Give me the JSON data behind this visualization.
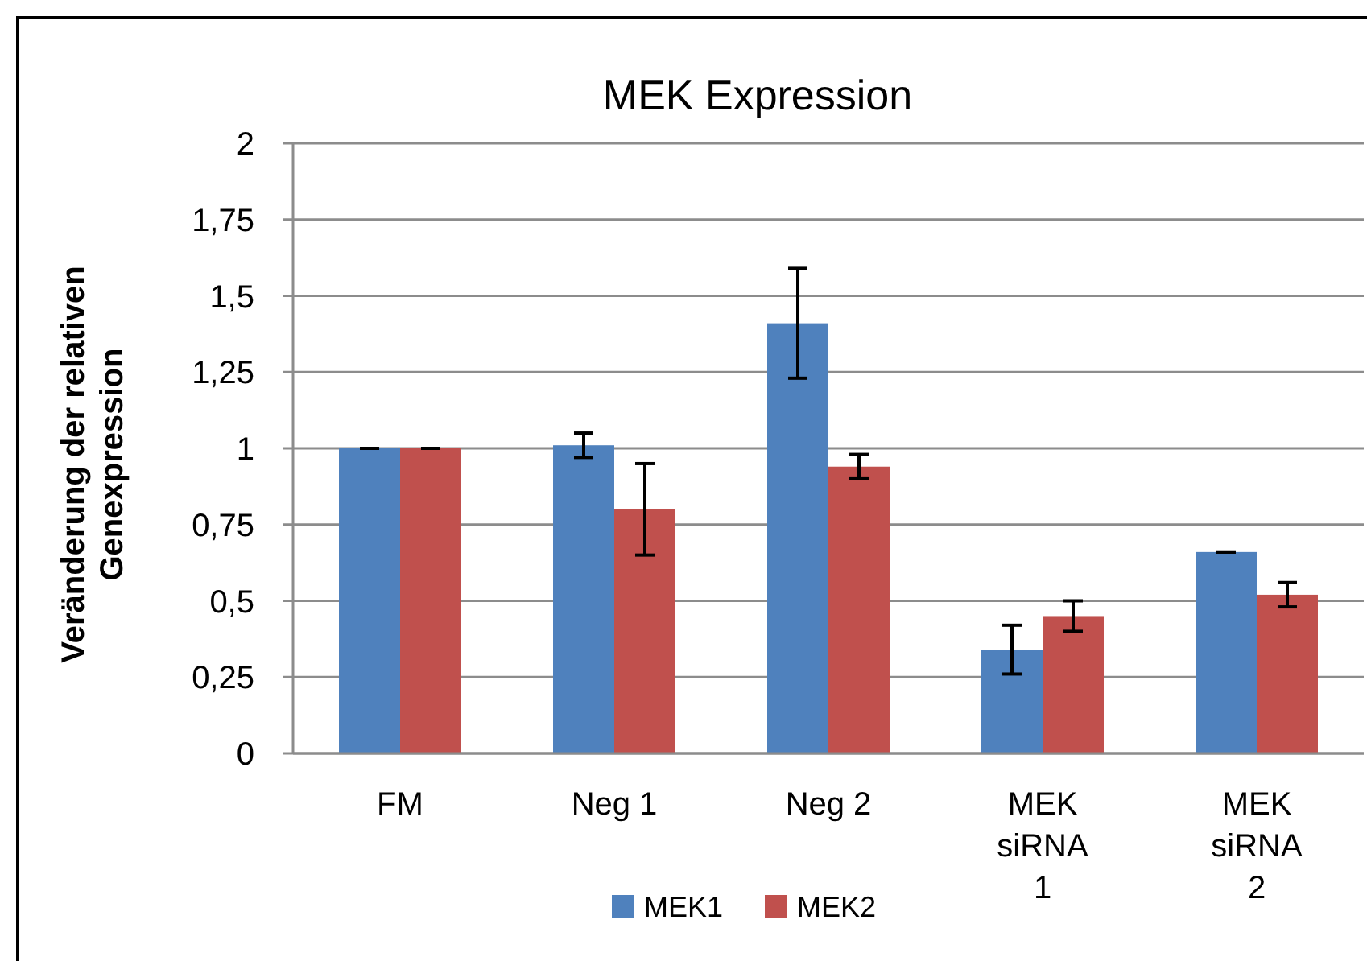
{
  "chart_data": {
    "type": "bar",
    "title": "MEK Expression",
    "ylabel": "Veränderung der relativen Genexpression",
    "categories": [
      "FM",
      "Neg 1",
      "Neg 2",
      "MEK siRNA 1",
      "MEK siRNA 2"
    ],
    "series": [
      {
        "name": "MEK1",
        "color": "#4f81bd",
        "values": [
          1,
          1.01,
          1.41,
          0.34,
          0.66
        ],
        "errors": [
          0,
          0.04,
          0.18,
          0.08,
          0
        ]
      },
      {
        "name": "MEK2",
        "color": "#c0504d",
        "values": [
          1,
          0.8,
          0.94,
          0.45,
          0.52
        ],
        "errors": [
          0,
          0.15,
          0.04,
          0.05,
          0.04
        ]
      }
    ],
    "ylim": [
      0,
      2
    ],
    "yticks": [
      0,
      {
        "value": 0.25,
        "label": "0,25"
      },
      {
        "value": 0.5,
        "label": "0,5"
      },
      {
        "value": 0.75,
        "label": "0,75"
      },
      1,
      {
        "value": 1.25,
        "label": "1,25"
      },
      {
        "value": 1.5,
        "label": "1,5"
      },
      {
        "value": 1.75,
        "label": "1,75"
      },
      2
    ],
    "grid": "y",
    "legend": "bottom"
  }
}
